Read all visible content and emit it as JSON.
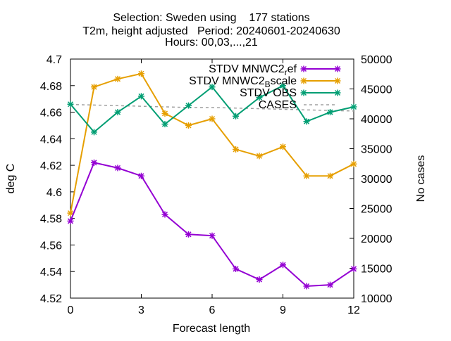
{
  "chart_data": {
    "type": "line",
    "title_lines": [
      "Selection: Sweden using    177 stations",
      "T2m, height adjusted   Period: 20240601-20240630",
      "Hours: 00,03,...,21"
    ],
    "xlabel": "Forecast length",
    "ylabel": "deg C",
    "y2label": "No cases",
    "xlim": [
      0,
      12
    ],
    "ylim": [
      4.52,
      4.7
    ],
    "y2lim": [
      10000,
      50000
    ],
    "xticks": [
      0,
      3,
      6,
      9,
      12
    ],
    "yticks": [
      4.52,
      4.54,
      4.56,
      4.58,
      4.6,
      4.62,
      4.64,
      4.66,
      4.68,
      4.7
    ],
    "y2ticks": [
      10000,
      15000,
      20000,
      25000,
      30000,
      35000,
      40000,
      45000,
      50000
    ],
    "x": [
      0,
      1,
      2,
      3,
      4,
      5,
      6,
      7,
      8,
      9,
      10,
      11,
      12
    ],
    "grid": false,
    "legend_position": "top-right",
    "series": [
      {
        "name": "STDV MNWC2_ref",
        "legend_main": "STDV MNWC2",
        "legend_sub": "r",
        "legend_tail": "ef",
        "color": "#9400d3",
        "axis": "y1",
        "values": [
          4.578,
          4.622,
          4.618,
          4.612,
          4.583,
          4.568,
          4.567,
          4.542,
          4.534,
          4.545,
          4.529,
          4.53,
          4.542
        ]
      },
      {
        "name": "STDV MNWC2_Bscale",
        "legend_main": "STDV MNWC2",
        "legend_sub": "B",
        "legend_tail": "scale",
        "color": "#e69f00",
        "axis": "y1",
        "values": [
          4.584,
          4.679,
          4.685,
          4.689,
          4.659,
          4.65,
          4.655,
          4.632,
          4.627,
          4.634,
          4.612,
          4.612,
          4.621
        ]
      },
      {
        "name": "STDV OBS",
        "legend_main": "STDV OBS",
        "legend_sub": "",
        "legend_tail": "",
        "color": "#009e73",
        "axis": "y1",
        "values": [
          4.666,
          4.645,
          4.66,
          4.672,
          4.651,
          4.665,
          4.679,
          4.657,
          4.671,
          4.68,
          4.653,
          4.66,
          4.664
        ]
      },
      {
        "name": "CASES",
        "legend_main": "CASES",
        "legend_sub": "",
        "legend_tail": "",
        "color": "#a0a0a0",
        "axis": "y2",
        "dashed": true,
        "values": [
          42400,
          42300,
          42200,
          42100,
          42000,
          41900,
          41900,
          41800,
          41700,
          41600,
          41500,
          41400,
          41300
        ]
      }
    ]
  }
}
